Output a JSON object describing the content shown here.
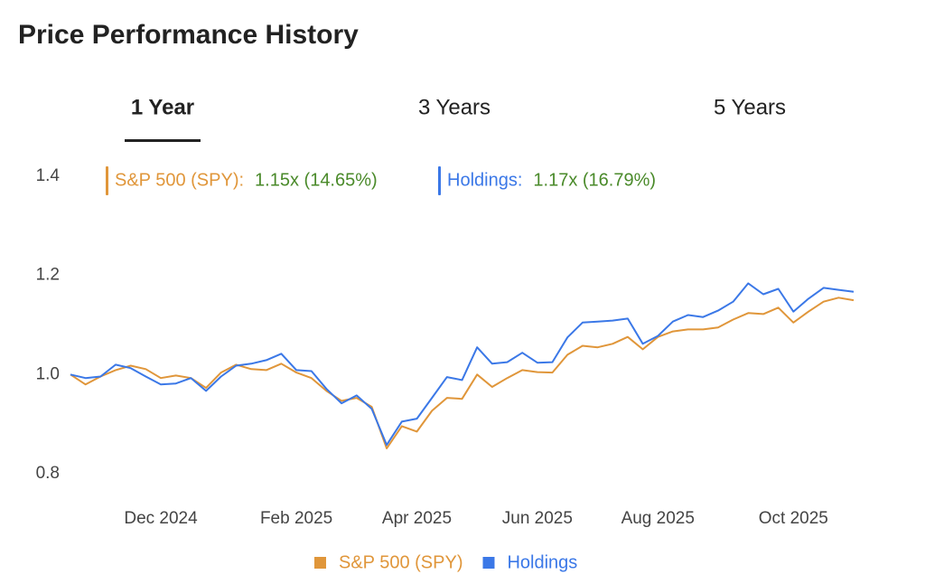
{
  "title": "Price Performance History",
  "tabs": [
    "1 Year",
    "3 Years",
    "5 Years"
  ],
  "selected_tab": 0,
  "summary": [
    {
      "label": "S&P 500 (SPY):",
      "value": "1.15x (14.65%)",
      "color": "#e0963a"
    },
    {
      "label": "Holdings:",
      "value": "1.17x (16.79%)",
      "color": "#3b78e7"
    }
  ],
  "chart_data": {
    "type": "line",
    "categories": [
      null,
      null,
      null,
      null,
      null,
      null,
      "Dec 2024",
      null,
      null,
      null,
      null,
      null,
      null,
      null,
      null,
      "Feb 2025",
      null,
      null,
      null,
      null,
      null,
      null,
      null,
      "Apr 2025",
      null,
      null,
      null,
      null,
      null,
      null,
      null,
      "Jun 2025",
      null,
      null,
      null,
      null,
      null,
      null,
      null,
      "Aug 2025",
      null,
      null,
      null,
      null,
      null,
      null,
      null,
      null,
      "Oct 2025",
      null,
      null,
      null,
      null
    ],
    "series": [
      {
        "name": "S&P 500 (SPY)",
        "color": "#e0963a",
        "values": [
          1.0,
          0.98,
          0.996,
          1.009,
          1.018,
          1.011,
          0.993,
          0.998,
          0.993,
          0.973,
          1.004,
          1.02,
          1.011,
          1.009,
          1.022,
          1.004,
          0.993,
          0.967,
          0.947,
          0.953,
          0.935,
          0.851,
          0.896,
          0.885,
          0.927,
          0.953,
          0.951,
          1.0,
          0.975,
          0.993,
          1.009,
          1.005,
          1.004,
          1.04,
          1.058,
          1.055,
          1.062,
          1.076,
          1.051,
          1.076,
          1.087,
          1.091,
          1.091,
          1.095,
          1.111,
          1.124,
          1.122,
          1.135,
          1.105,
          1.127,
          1.147,
          1.155,
          1.15
        ]
      },
      {
        "name": "Holdings",
        "color": "#3b78e7",
        "values": [
          1.0,
          0.993,
          0.996,
          1.02,
          1.013,
          0.996,
          0.98,
          0.982,
          0.993,
          0.967,
          0.996,
          1.018,
          1.022,
          1.029,
          1.042,
          1.009,
          1.007,
          0.971,
          0.942,
          0.958,
          0.931,
          0.858,
          0.905,
          0.911,
          0.953,
          0.995,
          0.989,
          1.055,
          1.022,
          1.025,
          1.044,
          1.024,
          1.025,
          1.075,
          1.105,
          1.107,
          1.109,
          1.113,
          1.062,
          1.078,
          1.107,
          1.12,
          1.116,
          1.129,
          1.147,
          1.184,
          1.162,
          1.173,
          1.127,
          1.153,
          1.175,
          1.171,
          1.167
        ]
      }
    ],
    "ylim": [
      0.8,
      1.4
    ],
    "yticks": [
      0.8,
      {
        "value": 1,
        "label": "1.0"
      },
      1.2,
      1.4
    ],
    "grid": false
  }
}
